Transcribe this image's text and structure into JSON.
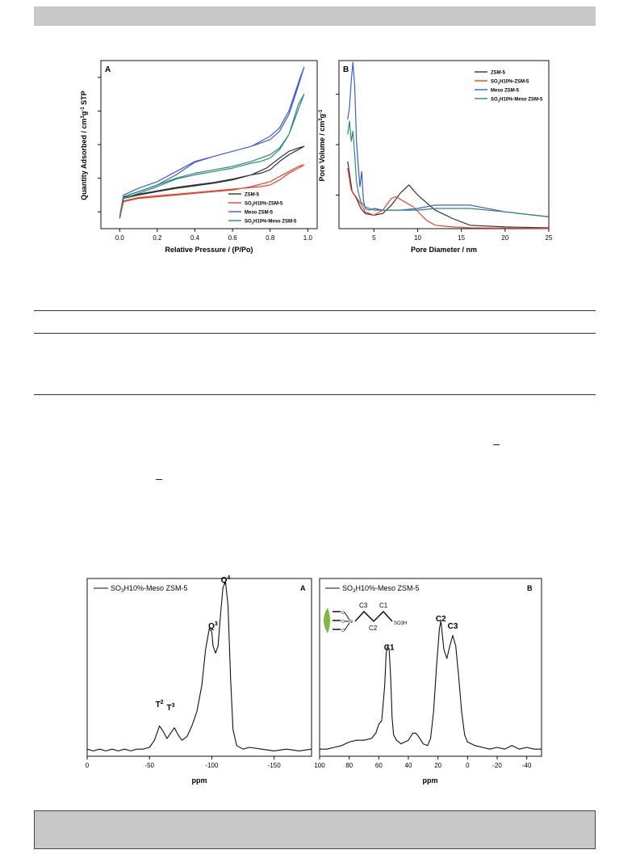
{
  "colors": {
    "black_series": "#333333",
    "red_series": "#e8412c",
    "blue_series": "#3b5bdb",
    "teal_series": "#2a8a7a",
    "band_gray": "#c8c8c8"
  },
  "chart_data": [
    {
      "id": "isotherm",
      "type": "line",
      "panel_label": "A",
      "xlabel": "Relative Pressure / (P/Po)",
      "ylabel": "Quantity Adsorbed / cm3g-1 STP",
      "xlim": [
        -0.1,
        1.05
      ],
      "ylim": [
        0,
        100
      ],
      "xticks": [
        "0.0",
        "0.2",
        "0.4",
        "0.6",
        "0.8",
        "1.0"
      ],
      "xtick_values": [
        0.0,
        0.2,
        0.4,
        0.6,
        0.8,
        1.0
      ],
      "ytick_values": [
        10,
        30,
        50,
        70,
        90
      ],
      "yticks_labeled": false,
      "legend_position": "bottom-right",
      "series": [
        {
          "name": "ZSM-5",
          "color": "#333333",
          "x": [
            0.0,
            0.02,
            0.1,
            0.2,
            0.3,
            0.4,
            0.5,
            0.6,
            0.7,
            0.78,
            0.85,
            0.9,
            0.95,
            0.98,
            0.95,
            0.9,
            0.85,
            0.8,
            0.75,
            0.7,
            0.6,
            0.5,
            0.4,
            0.3,
            0.2,
            0.1,
            0.02
          ],
          "y": [
            6,
            18,
            20,
            22,
            24,
            25.5,
            27,
            29,
            32,
            36,
            42,
            46,
            48,
            49,
            47,
            44,
            40,
            35,
            33,
            32,
            29.5,
            27.5,
            26,
            24.5,
            22.5,
            20.5,
            18.5
          ]
        },
        {
          "name": "SO3H10%-ZSM-5",
          "color": "#e8412c",
          "x": [
            0.0,
            0.02,
            0.1,
            0.2,
            0.3,
            0.4,
            0.5,
            0.6,
            0.7,
            0.8,
            0.85,
            0.9,
            0.95,
            0.98,
            0.95,
            0.9,
            0.85,
            0.8,
            0.75,
            0.7,
            0.6,
            0.5,
            0.4,
            0.3,
            0.2,
            0.1,
            0.02
          ],
          "y": [
            6,
            16,
            18,
            19,
            20,
            21,
            22,
            23,
            25,
            28,
            31,
            34,
            37,
            38,
            36,
            33,
            29,
            26,
            25,
            24.5,
            23.5,
            22.5,
            21.5,
            20.5,
            19.5,
            18.5,
            16.5
          ]
        },
        {
          "name": "Meso ZSM-5",
          "color": "#3b5bdb",
          "x": [
            0.0,
            0.02,
            0.1,
            0.2,
            0.3,
            0.4,
            0.5,
            0.6,
            0.7,
            0.8,
            0.85,
            0.9,
            0.93,
            0.96,
            0.98,
            0.95,
            0.9,
            0.85,
            0.8,
            0.75,
            0.7,
            0.6,
            0.5,
            0.4,
            0.3,
            0.2,
            0.1,
            0.02
          ],
          "y": [
            7,
            20,
            24,
            28,
            34,
            40,
            43,
            46,
            49,
            55,
            60,
            70,
            80,
            90,
            96,
            85,
            68,
            58,
            53,
            51,
            49,
            46,
            43,
            39.5,
            32,
            26,
            22,
            19
          ]
        },
        {
          "name": "SO3H10%-Meso ZSM-5",
          "color": "#2a8a7a",
          "x": [
            0.0,
            0.02,
            0.1,
            0.2,
            0.3,
            0.4,
            0.5,
            0.6,
            0.7,
            0.8,
            0.85,
            0.9,
            0.94,
            0.98,
            0.95,
            0.9,
            0.85,
            0.8,
            0.75,
            0.7,
            0.6,
            0.5,
            0.4,
            0.3,
            0.2,
            0.1,
            0.02
          ],
          "y": [
            7,
            19,
            22,
            26,
            30,
            33,
            35,
            37,
            40,
            44,
            48,
            56,
            68,
            80,
            74,
            56,
            47,
            42,
            40,
            39,
            36,
            34,
            32,
            29.5,
            25,
            21,
            18
          ]
        }
      ]
    },
    {
      "id": "pore-size",
      "type": "line",
      "panel_label": "B",
      "xlabel": "Pore Diameter / nm",
      "ylabel": "Pore Volume / cm3g-1",
      "xlim": [
        1,
        25
      ],
      "ylim": [
        0,
        100
      ],
      "xticks": [
        "5",
        "10",
        "15",
        "20",
        "25"
      ],
      "xtick_values": [
        5,
        10,
        15,
        20,
        25
      ],
      "ytick_values": [
        20,
        50,
        80
      ],
      "yticks_labeled": false,
      "legend_position": "top-right",
      "series": [
        {
          "name": "ZSM-5",
          "color": "#333333",
          "x": [
            2.0,
            2.5,
            3.0,
            3.5,
            4.0,
            5.0,
            6.0,
            7.0,
            8.0,
            9.0,
            10.0,
            12.0,
            14.0,
            16.0,
            20.0,
            25.0
          ],
          "y": [
            40,
            22,
            18,
            12,
            9,
            8,
            9,
            14,
            21,
            26,
            20,
            11,
            6,
            2,
            1,
            0.5
          ]
        },
        {
          "name": "SO3H10%-ZSM-5",
          "color": "#e8412c",
          "x": [
            2.0,
            2.4,
            2.8,
            3.2,
            3.6,
            4.0,
            4.5,
            5.0,
            6.0,
            7.0,
            7.5,
            8.5,
            9.5,
            11.0,
            12.0,
            14.0,
            16.0,
            20.0,
            25.0
          ],
          "y": [
            36,
            23,
            20,
            17,
            14,
            10,
            9,
            8,
            11,
            18,
            19,
            16,
            13,
            5,
            2,
            1,
            0.5,
            0.3,
            0.2
          ]
        },
        {
          "name": "Meso ZSM-5",
          "color": "#3b5bdb",
          "x": [
            2.0,
            2.2,
            2.4,
            2.6,
            2.8,
            3.0,
            3.2,
            3.4,
            3.6,
            3.8,
            4.0,
            4.5,
            5.0,
            6.0,
            8.0,
            10.0,
            12.0,
            14.0,
            16.0,
            20.0,
            25.0
          ],
          "y": [
            65,
            72,
            88,
            99,
            85,
            52,
            38,
            25,
            34,
            17,
            12,
            11,
            12,
            11,
            11,
            12,
            14,
            14,
            14,
            10,
            7
          ]
        },
        {
          "name": "SO3H10%-Meso ZSM-5",
          "color": "#2a8a7a",
          "x": [
            2.0,
            2.2,
            2.4,
            2.6,
            2.8,
            3.0,
            3.2,
            3.5,
            4.0,
            5.0,
            6.0,
            8.0,
            10.0,
            12.0,
            16.0,
            20.0,
            25.0
          ],
          "y": [
            56,
            64,
            52,
            58,
            44,
            28,
            22,
            16,
            13,
            11,
            11,
            11,
            11,
            12,
            12,
            10,
            7
          ]
        }
      ]
    },
    {
      "id": "nmr-si",
      "type": "line",
      "panel_label": "A",
      "xlabel": "ppm",
      "legend": "SO3H10%-Meso ZSM-5",
      "x_reversed": true,
      "xlim": [
        0,
        -180
      ],
      "ylim": [
        0,
        100
      ],
      "xticks": [
        "0",
        "-50",
        "-100",
        "-150"
      ],
      "xtick_values": [
        0,
        -50,
        -100,
        -150
      ],
      "annotations": [
        {
          "label": "T2",
          "x": -58,
          "y": 26
        },
        {
          "label": "T3",
          "x": -67,
          "y": 24
        },
        {
          "label": "Q3",
          "x": -101,
          "y": 70
        },
        {
          "label": "Q4",
          "x": -111,
          "y": 96
        }
      ],
      "series": [
        {
          "name": "SO3H10%-Meso ZSM-5",
          "color": "#111111",
          "x": [
            0,
            -5,
            -10,
            -15,
            -20,
            -25,
            -30,
            -35,
            -40,
            -45,
            -50,
            -54,
            -58,
            -61,
            -64,
            -67,
            -70,
            -73,
            -76,
            -80,
            -84,
            -88,
            -92,
            -95,
            -98,
            -100,
            -101,
            -103,
            -105,
            -107,
            -109,
            -111,
            -113,
            -115,
            -117,
            -120,
            -125,
            -130,
            -140,
            -150,
            -160,
            -170,
            -180
          ],
          "y": [
            4,
            3,
            4,
            3,
            4,
            3,
            4,
            3,
            4,
            4,
            5,
            9,
            17,
            14,
            10,
            13,
            16,
            12,
            9,
            11,
            17,
            25,
            40,
            60,
            72,
            70,
            62,
            58,
            62,
            80,
            95,
            98,
            85,
            45,
            15,
            6,
            4,
            5,
            4,
            3,
            4,
            3,
            4
          ]
        }
      ]
    },
    {
      "id": "nmr-c",
      "type": "line",
      "panel_label": "B",
      "xlabel": "ppm",
      "legend": "SO3H10%-Meso ZSM-5",
      "x_reversed": true,
      "xlim": [
        100,
        -50
      ],
      "ylim": [
        0,
        100
      ],
      "xticks": [
        "100",
        "80",
        "60",
        "40",
        "20",
        "0",
        "-20",
        "-40"
      ],
      "xtick_values": [
        100,
        80,
        60,
        40,
        20,
        0,
        -20,
        -40
      ],
      "annotations": [
        {
          "label": "C1",
          "x": 53,
          "y": 58
        },
        {
          "label": "C2",
          "x": 18,
          "y": 74
        },
        {
          "label": "C3",
          "x": 10,
          "y": 70
        }
      ],
      "inset_labels": [
        "C3",
        "C1",
        "C2",
        "SO3H",
        "Si",
        "O",
        "O",
        "O"
      ],
      "series": [
        {
          "name": "SO3H10%-Meso ZSM-5",
          "color": "#111111",
          "x": [
            100,
            95,
            90,
            85,
            80,
            75,
            70,
            65,
            62,
            60,
            58,
            56,
            55,
            54,
            53,
            52,
            51,
            50,
            48,
            45,
            40,
            37,
            35,
            33,
            30,
            27,
            25,
            23,
            21,
            19,
            18,
            16,
            14,
            12,
            10,
            8,
            6,
            4,
            2,
            0,
            -5,
            -10,
            -15,
            -20,
            -25,
            -30,
            -35,
            -40,
            -45,
            -50
          ],
          "y": [
            4,
            4,
            5,
            6,
            8,
            9,
            9,
            10,
            13,
            18,
            20,
            40,
            58,
            62,
            60,
            45,
            22,
            12,
            9,
            7,
            9,
            13,
            13,
            11,
            7,
            6,
            10,
            25,
            50,
            72,
            76,
            60,
            55,
            62,
            68,
            62,
            45,
            25,
            12,
            8,
            6,
            5,
            4,
            5,
            4,
            6,
            4,
            5,
            4,
            4
          ]
        }
      ]
    }
  ]
}
